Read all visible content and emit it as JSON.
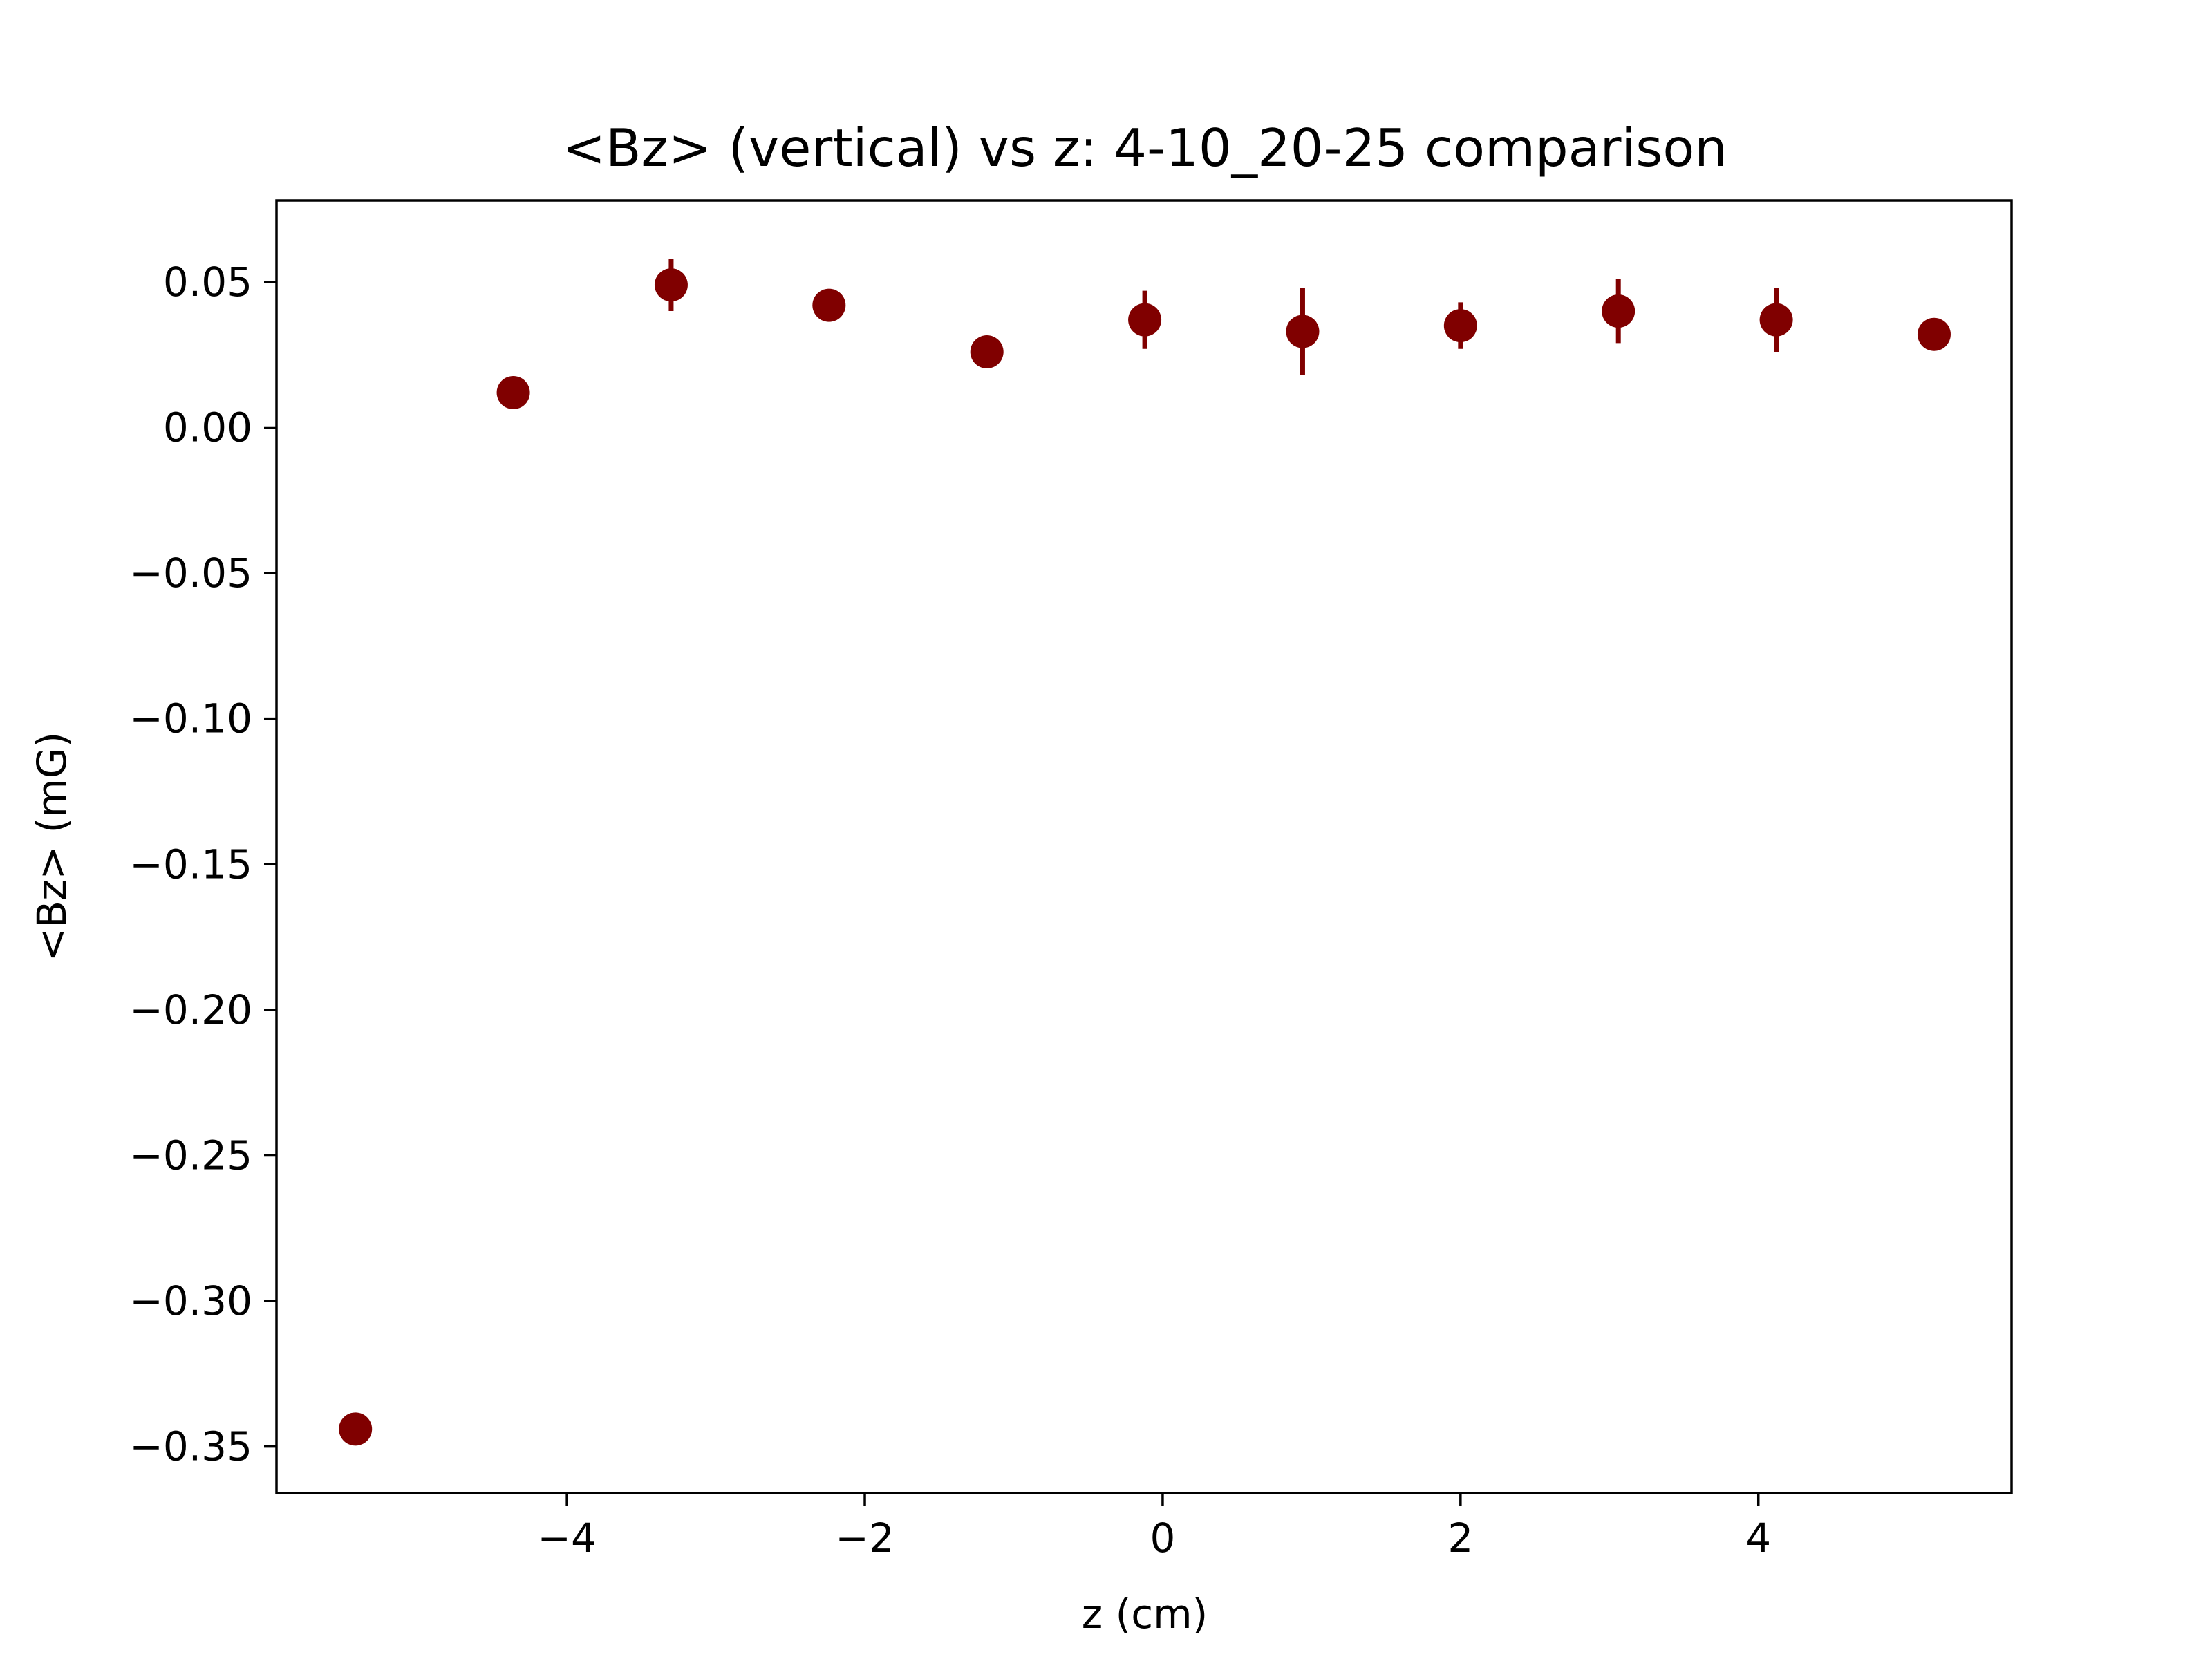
{
  "chart_data": {
    "type": "scatter",
    "title": "<Bz> (vertical) vs z: 4-10_20-25 comparison",
    "xlabel": "z (cm)",
    "ylabel": "<Bz> (mG)",
    "xlim": [
      -5.95,
      5.7
    ],
    "ylim": [
      -0.366,
      0.078
    ],
    "x_ticks": [
      -4,
      -2,
      0,
      2,
      4
    ],
    "x_tick_labels": [
      "−4",
      "−2",
      "0",
      "2",
      "4"
    ],
    "y_ticks": [
      0.05,
      0.0,
      -0.05,
      -0.1,
      -0.15,
      -0.2,
      -0.25,
      -0.3,
      -0.35
    ],
    "y_tick_labels": [
      "0.05",
      "0.00",
      "−0.05",
      "−0.10",
      "−0.15",
      "−0.20",
      "−0.25",
      "−0.30",
      "−0.35"
    ],
    "grid": false,
    "color": "#800000",
    "series": [
      {
        "x": [
          -5.42,
          -4.36,
          -3.3,
          -2.24,
          -1.18,
          -0.12,
          0.94,
          2.0,
          3.06,
          4.12,
          5.18
        ],
        "y": [
          -0.344,
          0.012,
          0.049,
          0.042,
          0.026,
          0.037,
          0.033,
          0.035,
          0.04,
          0.037,
          0.032
        ],
        "yerr": [
          0.0,
          0.0,
          0.009,
          0.0,
          0.0,
          0.01,
          0.015,
          0.008,
          0.011,
          0.011,
          0.0
        ]
      }
    ]
  }
}
